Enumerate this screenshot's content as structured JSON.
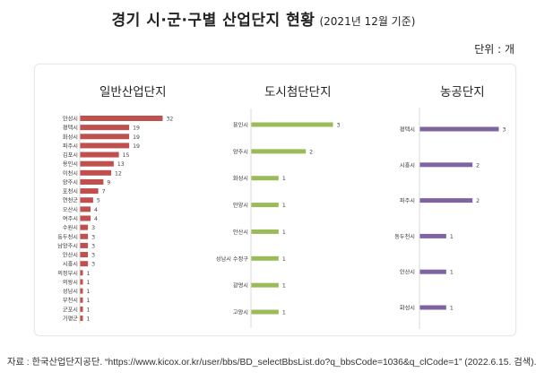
{
  "header": {
    "title": "경기 시·군·구별 산업단지 현황",
    "subtitle": "(2021년 12월 기준)",
    "unit": "단위 : 개"
  },
  "source": "자료 : 한국산업단지공단. “https://www.kicox.or.kr/user/bbs/BD_selectBbsList.do?q_bbsCode=1036&q_clCode=1” (2022.6.15. 검색).",
  "chart_data": [
    {
      "type": "bar",
      "orientation": "horizontal",
      "title": "일반산업단지",
      "color": "#c0504d",
      "categories": [
        "안성시",
        "평택시",
        "화성시",
        "파주시",
        "김포시",
        "용인시",
        "이천시",
        "양주시",
        "포천시",
        "연천군",
        "오산시",
        "여주시",
        "수원시",
        "동두천시",
        "남양주시",
        "안산시",
        "시흥시",
        "의정부시",
        "의왕시",
        "성남시",
        "부천시",
        "군포시",
        "가평군"
      ],
      "values": [
        32,
        19,
        19,
        19,
        15,
        13,
        12,
        9,
        7,
        5,
        4,
        4,
        3,
        3,
        3,
        3,
        3,
        1,
        1,
        1,
        1,
        1,
        1
      ]
    },
    {
      "type": "bar",
      "orientation": "horizontal",
      "title": "도시첨단단지",
      "color": "#9bbb59",
      "categories": [
        "용인시",
        "양주시",
        "화성시",
        "안양시",
        "안산시",
        "성남시 수정구",
        "광명시",
        "고양시"
      ],
      "values": [
        3,
        2,
        1,
        1,
        1,
        1,
        1,
        1
      ]
    },
    {
      "type": "bar",
      "orientation": "horizontal",
      "title": "농공단지",
      "color": "#8064a2",
      "categories": [
        "평택시",
        "시흥시",
        "파주시",
        "동두천시",
        "안산시",
        "화성시"
      ],
      "values": [
        3,
        2,
        2,
        1,
        1,
        1
      ]
    }
  ]
}
